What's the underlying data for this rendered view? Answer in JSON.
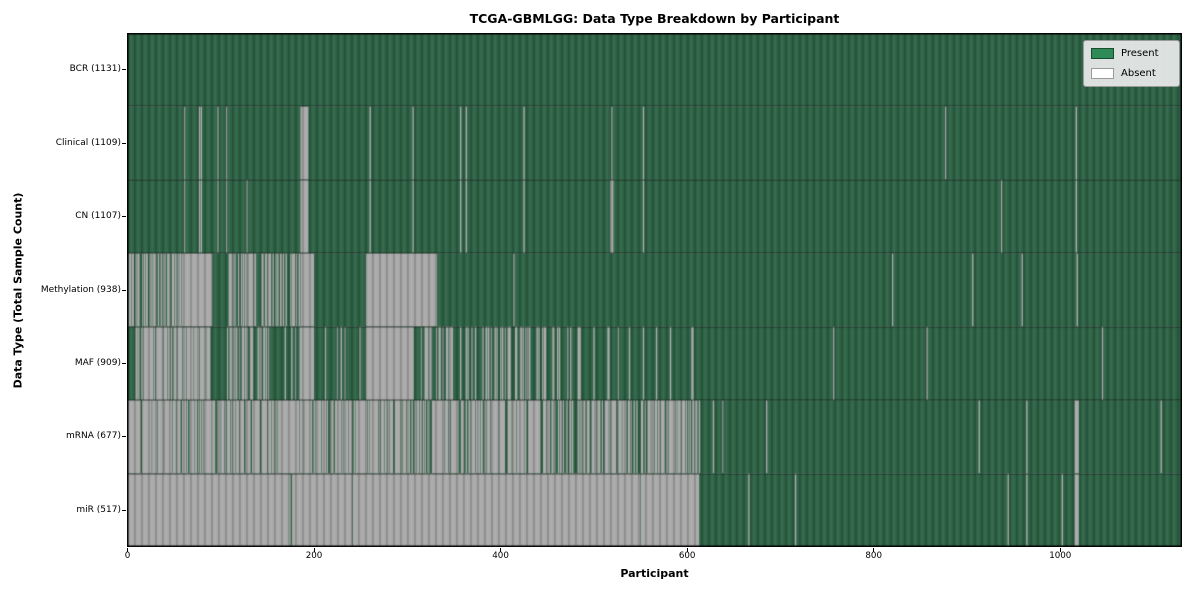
{
  "chart_data": {
    "type": "heatmap",
    "title": "TCGA-GBMLGG: Data Type Breakdown by Participant",
    "xlabel": "Participant",
    "ylabel": "Data Type (Total Sample Count)",
    "x_ticks": [
      0,
      200,
      400,
      600,
      800,
      1000
    ],
    "n_participants": 1131,
    "grid": false,
    "legend_position": "upper right",
    "legend": [
      {
        "label": "Present",
        "color": "#2e8b57"
      },
      {
        "label": "Absent",
        "color": "#ffffff"
      }
    ],
    "colors": {
      "present_fill": "#2e6346",
      "absent_fill": "#a9a9a9",
      "present_legend": "#2e8b57",
      "absent_legend": "#ffffff"
    },
    "rows": [
      {
        "data_type": "BCR",
        "label": "BCR (1131)",
        "present_count": 1131,
        "absent_segments": []
      },
      {
        "data_type": "Clinical",
        "label": "Clinical (1109)",
        "present_count": 1109,
        "absent_segments": [
          [
            61,
            61,
            1
          ],
          [
            77,
            77,
            1
          ],
          [
            79,
            79,
            1
          ],
          [
            97,
            97,
            1
          ],
          [
            106,
            106,
            1
          ],
          [
            186,
            193,
            1
          ],
          [
            260,
            260,
            1
          ],
          [
            306,
            306,
            1
          ],
          [
            357,
            357,
            1
          ],
          [
            363,
            363,
            1
          ],
          [
            425,
            425,
            1
          ],
          [
            519,
            519,
            1
          ],
          [
            553,
            553,
            1
          ],
          [
            877,
            877,
            1
          ],
          [
            1017,
            1017,
            1
          ]
        ]
      },
      {
        "data_type": "CN",
        "label": "CN (1107)",
        "present_count": 1107,
        "absent_segments": [
          [
            61,
            61,
            1
          ],
          [
            77,
            77,
            1
          ],
          [
            79,
            79,
            1
          ],
          [
            97,
            97,
            1
          ],
          [
            106,
            106,
            1
          ],
          [
            128,
            128,
            1
          ],
          [
            186,
            193,
            1
          ],
          [
            260,
            260,
            1
          ],
          [
            306,
            306,
            1
          ],
          [
            357,
            357,
            1
          ],
          [
            363,
            363,
            1
          ],
          [
            425,
            425,
            1
          ],
          [
            518,
            520,
            1
          ],
          [
            553,
            553,
            1
          ],
          [
            937,
            937,
            1
          ],
          [
            1017,
            1017,
            1
          ]
        ]
      },
      {
        "data_type": "Methylation",
        "label": "Methylation (938)",
        "present_count": 938,
        "absent_segments": [
          [
            0,
            60,
            0.5
          ],
          [
            61,
            90,
            1
          ],
          [
            105,
            185,
            0.5
          ],
          [
            186,
            199,
            1
          ],
          [
            256,
            331,
            1
          ],
          [
            414,
            414,
            1
          ],
          [
            820,
            820,
            1
          ],
          [
            906,
            906,
            1
          ],
          [
            959,
            959,
            1
          ],
          [
            1018,
            1018,
            1
          ]
        ]
      },
      {
        "data_type": "MAF",
        "label": "MAF (909)",
        "present_count": 909,
        "absent_segments": [
          [
            9,
            88,
            0.8
          ],
          [
            106,
            150,
            0.45
          ],
          [
            151,
            185,
            0.3
          ],
          [
            186,
            199,
            1
          ],
          [
            200,
            255,
            0.1
          ],
          [
            256,
            306,
            1
          ],
          [
            307,
            450,
            0.3
          ],
          [
            451,
            560,
            0.12
          ],
          [
            561,
            620,
            0.05
          ],
          [
            757,
            757,
            1
          ],
          [
            857,
            857,
            1
          ],
          [
            1045,
            1045,
            1
          ]
        ]
      },
      {
        "data_type": "mRNA",
        "label": "mRNA (677)",
        "present_count": 677,
        "absent_segments": [
          [
            0,
            75,
            0.9
          ],
          [
            76,
            110,
            0.7
          ],
          [
            111,
            240,
            0.75
          ],
          [
            241,
            455,
            0.72
          ],
          [
            456,
            530,
            0.5
          ],
          [
            531,
            613,
            0.65
          ],
          [
            628,
            628,
            1
          ],
          [
            638,
            638,
            1
          ],
          [
            685,
            685,
            1
          ],
          [
            913,
            913,
            1
          ],
          [
            964,
            964,
            1
          ],
          [
            1016,
            1019,
            1
          ],
          [
            1108,
            1108,
            1
          ]
        ]
      },
      {
        "data_type": "miR",
        "label": "miR (517)",
        "present_count": 517,
        "absent_segments": [
          [
            0,
            174,
            1
          ],
          [
            177,
            240,
            1
          ],
          [
            242,
            549,
            1
          ],
          [
            551,
            612,
            1
          ],
          [
            666,
            666,
            1
          ],
          [
            716,
            716,
            1
          ],
          [
            944,
            944,
            1
          ],
          [
            964,
            964,
            1
          ],
          [
            1002,
            1002,
            1
          ],
          [
            1016,
            1019,
            1
          ]
        ]
      }
    ]
  }
}
